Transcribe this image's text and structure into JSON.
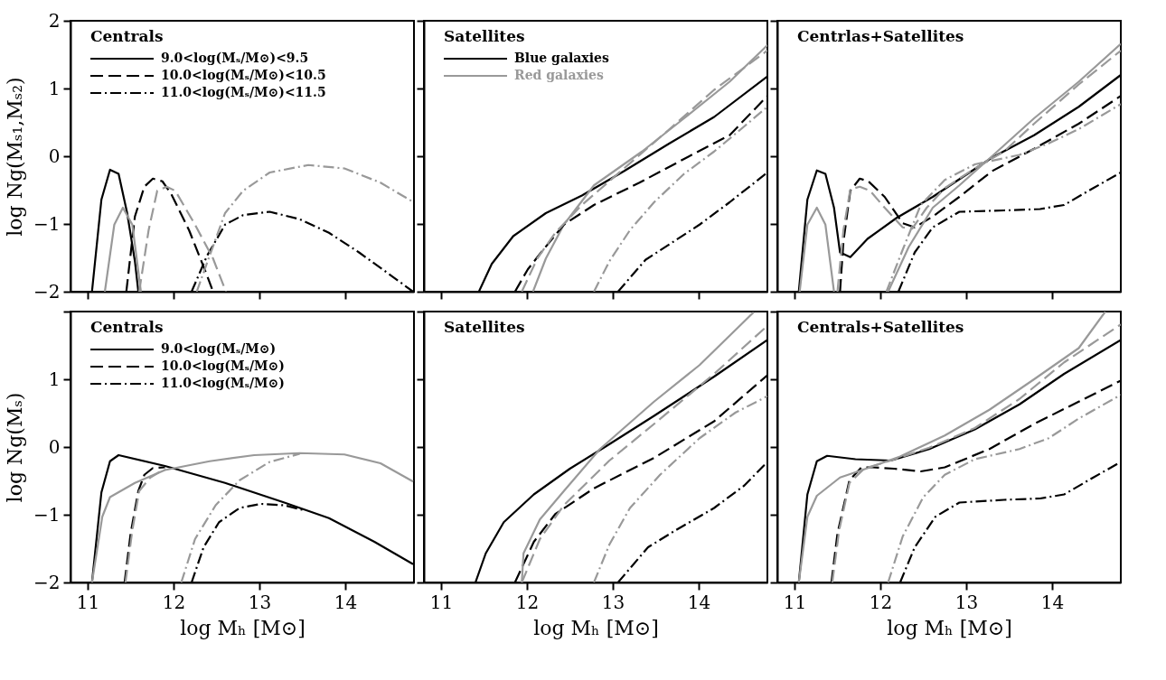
{
  "chart_data": [
    {
      "type": "line",
      "title": "Centrals",
      "ylabel": "log Ng(Mₛ₁,Mₛ₂)",
      "xlim": [
        10.8,
        14.8
      ],
      "ylim": [
        -2,
        2
      ],
      "xticks": [
        11,
        12,
        13,
        14
      ],
      "yticks": [
        -2,
        -1,
        0,
        1,
        2
      ],
      "tick_labels": "y",
      "legend": "top left",
      "grid": false,
      "series": [
        {
          "name": "9.0<log(Mₛ/M⊙)<9.5",
          "color": "#000000",
          "line_style": "solid",
          "x": [
            11.05,
            11.16,
            11.26,
            11.36,
            11.46,
            11.55,
            11.59
          ],
          "values": [
            -2,
            -0.64,
            -0.2,
            -0.26,
            -0.84,
            -1.55,
            -2
          ]
        },
        {
          "name": "10.0<log(Mₛ/M⊙)<10.5",
          "color": "#000000",
          "line_style": "dashed",
          "x": [
            11.45,
            11.55,
            11.66,
            11.76,
            11.87,
            11.97,
            12.18,
            12.39,
            12.46
          ],
          "values": [
            -2,
            -0.89,
            -0.45,
            -0.33,
            -0.37,
            -0.55,
            -1.09,
            -1.76,
            -2
          ]
        },
        {
          "name": "11.0<log(Mₛ/M⊙)<11.5",
          "color": "#000000",
          "line_style": "dashdot",
          "x": [
            12.21,
            12.39,
            12.6,
            12.81,
            13.12,
            13.47,
            13.81,
            14.16,
            14.51,
            14.79
          ],
          "values": [
            -2,
            -1.47,
            -1.01,
            -0.87,
            -0.82,
            -0.93,
            -1.13,
            -1.42,
            -1.74,
            -2
          ]
        },
        {
          "color": "#999999",
          "line_style": "solid",
          "x": [
            11.2,
            11.31,
            11.41,
            11.52,
            11.62
          ],
          "values": [
            -2,
            -1.01,
            -0.76,
            -1.01,
            -2
          ]
        },
        {
          "color": "#999999",
          "line_style": "dashed",
          "x": [
            11.6,
            11.71,
            11.81,
            11.92,
            12.02,
            12.25,
            12.46,
            12.61
          ],
          "values": [
            -2,
            -1.09,
            -0.51,
            -0.45,
            -0.51,
            -1.01,
            -1.51,
            -2
          ]
        },
        {
          "color": "#999999",
          "line_style": "dashdot",
          "x": [
            12.27,
            12.42,
            12.6,
            12.81,
            13.12,
            13.57,
            13.99,
            14.41,
            14.77
          ],
          "values": [
            -2,
            -1.47,
            -0.84,
            -0.51,
            -0.24,
            -0.13,
            -0.18,
            -0.39,
            -0.66
          ]
        }
      ]
    },
    {
      "type": "line",
      "title": "Satellites",
      "xlim": [
        10.8,
        14.8
      ],
      "ylim": [
        -2,
        2
      ],
      "xticks": [
        11,
        12,
        13,
        14
      ],
      "yticks": [
        -2,
        -1,
        0,
        1,
        2
      ],
      "tick_labels": false,
      "legend": "top left",
      "grid": false,
      "series": [
        {
          "name": "Blue galaxies",
          "color": "#000000",
          "line_style": "solid",
          "x": [
            11.44,
            11.59,
            11.84,
            12.22,
            12.64,
            13.13,
            13.66,
            14.18,
            14.8
          ],
          "values": [
            -2,
            -1.59,
            -1.18,
            -0.84,
            -0.58,
            -0.22,
            0.19,
            0.58,
            1.18
          ]
        },
        {
          "name": "Red galaxies",
          "color": "#999999",
          "line_style": "solid",
          "x": [
            12.07,
            12.22,
            12.43,
            12.78,
            13.34,
            13.83,
            14.36,
            14.8
          ],
          "values": [
            -2,
            -1.51,
            -1.01,
            -0.43,
            0.07,
            0.56,
            1.1,
            1.64
          ]
        },
        {
          "color": "#000000",
          "line_style": "dashed",
          "x": [
            11.86,
            12.01,
            12.19,
            12.43,
            12.78,
            13.31,
            13.83,
            14.36,
            14.8
          ],
          "values": [
            -2,
            -1.67,
            -1.38,
            -1.01,
            -0.72,
            -0.39,
            -0.04,
            0.31,
            0.89
          ]
        },
        {
          "color": "#999999",
          "line_style": "dashed",
          "x": [
            11.94,
            12.12,
            12.33,
            12.64,
            13.13,
            13.66,
            14.18,
            14.8
          ],
          "values": [
            -2,
            -1.51,
            -1.13,
            -0.72,
            -0.18,
            0.4,
            0.98,
            1.56
          ]
        },
        {
          "color": "#000000",
          "line_style": "dashdot",
          "x": [
            13.06,
            13.38,
            13.66,
            14.01,
            14.36,
            14.8
          ],
          "values": [
            -2,
            -1.53,
            -1.3,
            -1.01,
            -0.68,
            -0.24
          ]
        },
        {
          "color": "#999999",
          "line_style": "dashdot",
          "x": [
            12.78,
            12.96,
            13.2,
            13.48,
            13.83,
            14.18,
            14.53,
            14.8
          ],
          "values": [
            -2,
            -1.55,
            -1.09,
            -0.68,
            -0.26,
            0.07,
            0.44,
            0.73
          ]
        }
      ]
    },
    {
      "type": "line",
      "title": "Centrlas+Satellites",
      "xlim": [
        10.8,
        14.8
      ],
      "ylim": [
        -2,
        2
      ],
      "xticks": [
        11,
        12,
        13,
        14
      ],
      "yticks": [
        -2,
        -1,
        0,
        1,
        2
      ],
      "tick_labels": false,
      "grid": false,
      "series": [
        {
          "color": "#000000",
          "line_style": "solid",
          "x": [
            11.05,
            11.15,
            11.26,
            11.36,
            11.46,
            11.53,
            11.65,
            11.85,
            12.19,
            12.61,
            13.3,
            13.79,
            14.31,
            14.8
          ],
          "values": [
            -2,
            -0.64,
            -0.21,
            -0.26,
            -0.76,
            -1.42,
            -1.49,
            -1.22,
            -0.91,
            -0.6,
            -0.02,
            0.31,
            0.73,
            1.2
          ]
        },
        {
          "color": "#000000",
          "line_style": "dashed",
          "x": [
            11.53,
            11.57,
            11.65,
            11.76,
            11.86,
            12.05,
            12.26,
            12.4,
            12.61,
            12.92,
            13.3,
            13.79,
            14.31,
            14.8
          ],
          "values": [
            -2,
            -1.26,
            -0.51,
            -0.33,
            -0.37,
            -0.6,
            -0.99,
            -1.05,
            -0.89,
            -0.6,
            -0.22,
            0.11,
            0.48,
            0.89
          ]
        },
        {
          "color": "#000000",
          "line_style": "dashdot",
          "x": [
            12.21,
            12.4,
            12.61,
            12.92,
            13.44,
            13.86,
            14.14,
            14.48,
            14.8
          ],
          "values": [
            -2,
            -1.42,
            -1.05,
            -0.82,
            -0.8,
            -0.78,
            -0.72,
            -0.47,
            -0.24
          ]
        },
        {
          "color": "#999999",
          "line_style": "solid",
          "x": [
            11.06,
            11.15,
            11.26,
            11.36,
            11.46,
            11.8,
            12.09,
            12.33,
            12.61,
            12.92,
            13.3,
            13.79,
            14.31,
            14.8
          ],
          "values": [
            -2,
            -1.01,
            -0.76,
            -1.01,
            -2,
            null,
            -2,
            -1.34,
            -0.76,
            -0.43,
            0,
            0.56,
            1.1,
            1.66
          ]
        },
        {
          "color": "#999999",
          "line_style": "dashed",
          "x": [
            11.5,
            11.57,
            11.65,
            11.76,
            11.88,
            12.05,
            12.26,
            12.37,
            12.54,
            12.75,
            13.1,
            13.44,
            13.79,
            14.31,
            14.8
          ],
          "values": [
            -2,
            -1.09,
            -0.49,
            -0.45,
            -0.51,
            -0.76,
            -1.05,
            -1.07,
            -0.76,
            -0.47,
            -0.18,
            0.07,
            0.48,
            1.06,
            1.56
          ]
        },
        {
          "color": "#999999",
          "line_style": "dashdot",
          "x": [
            12.07,
            12.26,
            12.47,
            12.75,
            13.1,
            13.62,
            13.96,
            14.31,
            14.8
          ],
          "values": [
            -2,
            -1.38,
            -0.72,
            -0.35,
            -0.12,
            0.02,
            0.19,
            0.4,
            0.77
          ]
        }
      ]
    },
    {
      "type": "line",
      "title": "Centrals",
      "xlabel": "log Mₕ [M⊙]",
      "ylabel": "log Ng(Mₛ)",
      "xlim": [
        10.8,
        14.8
      ],
      "ylim": [
        -2,
        2
      ],
      "xticks": [
        11,
        12,
        13,
        14
      ],
      "yticks": [
        -2,
        -1,
        0,
        1,
        {
          "value": 2,
          "label": null
        }
      ],
      "legend": "top left",
      "grid": false,
      "series": [
        {
          "name": "9.0<log(Mₛ/M⊙)",
          "color": "#000000",
          "line_style": "solid",
          "x": [
            11.05,
            11.16,
            11.26,
            11.36,
            11.9,
            12.6,
            13.29,
            13.81,
            14.34,
            14.79
          ],
          "values": [
            -2,
            -0.67,
            -0.21,
            -0.12,
            -0.28,
            -0.53,
            -0.82,
            -1.05,
            -1.4,
            -1.73
          ]
        },
        {
          "name": "10.0<log(Mₛ/M⊙)",
          "color": "#000000",
          "line_style": "dashed",
          "x": [
            11.43,
            11.5,
            11.59,
            11.66,
            11.76,
            11.9
          ],
          "values": [
            -2,
            -1.28,
            -0.65,
            -0.41,
            -0.31,
            -0.3
          ]
        },
        {
          "name": "11.0<log(Mₛ/M⊙)",
          "color": "#000000",
          "line_style": "dashdot",
          "x": [
            12.21,
            12.35,
            12.53,
            12.77,
            13.02,
            13.29,
            13.54
          ],
          "values": [
            -2,
            -1.48,
            -1.11,
            -0.9,
            -0.84,
            -0.86,
            -0.94
          ]
        },
        {
          "color": "#999999",
          "line_style": "solid",
          "x": [
            11.05,
            11.17,
            11.26,
            11.55,
            11.9,
            12.42,
            12.94,
            13.47,
            13.99,
            14.41,
            14.79
          ],
          "values": [
            -2,
            -1.03,
            -0.74,
            -0.53,
            -0.34,
            -0.21,
            -0.12,
            -0.09,
            -0.11,
            -0.24,
            -0.51
          ]
        },
        {
          "color": "#999999",
          "line_style": "dashed",
          "x": [
            11.44,
            11.52,
            11.6,
            11.73,
            11.9
          ],
          "values": [
            -2,
            -1.23,
            -0.65,
            -0.45,
            -0.32
          ]
        },
        {
          "color": "#999999",
          "line_style": "dashdot",
          "x": [
            12.09,
            12.25,
            12.49,
            12.77,
            13.12,
            13.47
          ],
          "values": [
            -2,
            -1.36,
            -0.86,
            -0.49,
            -0.22,
            -0.1
          ]
        }
      ]
    },
    {
      "type": "line",
      "title": "Satellites",
      "xlabel": "log Mₕ [M⊙]",
      "xlim": [
        10.8,
        14.8
      ],
      "ylim": [
        -2,
        2
      ],
      "xticks": [
        11,
        12,
        13,
        14
      ],
      "yticks": [
        -2,
        -1,
        0,
        1,
        2
      ],
      "tick_labels": "x",
      "grid": false,
      "series": [
        {
          "color": "#000000",
          "line_style": "solid",
          "x": [
            11.4,
            11.52,
            11.73,
            12.08,
            12.5,
            12.92,
            13.48,
            14.18,
            14.8
          ],
          "values": [
            -2,
            -1.57,
            -1.11,
            -0.7,
            -0.32,
            0.01,
            0.46,
            1.04,
            1.58
          ]
        },
        {
          "color": "#000000",
          "line_style": "dashed",
          "x": [
            11.86,
            12.08,
            12.33,
            12.78,
            13.48,
            14.18,
            14.8
          ],
          "values": [
            -2,
            -1.4,
            -0.99,
            -0.61,
            -0.16,
            0.38,
            1.06
          ]
        },
        {
          "color": "#000000",
          "line_style": "dashdot",
          "x": [
            13.06,
            13.41,
            13.73,
            14.18,
            14.53,
            14.8
          ],
          "values": [
            -2,
            -1.48,
            -1.23,
            -0.9,
            -0.57,
            -0.22
          ]
        },
        {
          "color": "#999999",
          "line_style": "solid",
          "x": [
            11.94,
            11.96,
            12.15,
            12.43,
            12.85,
            13.48,
            14.01,
            14.64
          ],
          "values": [
            -2,
            -1.57,
            -1.07,
            -0.65,
            -0.03,
            0.67,
            1.21,
            1.99
          ]
        },
        {
          "color": "#999999",
          "line_style": "dashed",
          "x": [
            11.94,
            12.15,
            12.43,
            12.96,
            13.48,
            14.18,
            14.8
          ],
          "values": [
            -2,
            -1.36,
            -0.86,
            -0.2,
            0.34,
            1.08,
            1.79
          ]
        },
        {
          "color": "#999999",
          "line_style": "dashdot",
          "x": [
            12.78,
            12.96,
            13.2,
            13.55,
            14.01,
            14.43,
            14.8
          ],
          "values": [
            -2,
            -1.44,
            -0.9,
            -0.41,
            0.13,
            0.51,
            0.75
          ]
        }
      ]
    },
    {
      "type": "line",
      "title": "Centrals+Satellites",
      "xlabel": "log Mₕ [M⊙]",
      "xlim": [
        10.8,
        14.8
      ],
      "ylim": [
        -2,
        2
      ],
      "xticks": [
        11,
        12,
        13,
        14
      ],
      "yticks": [
        -2,
        -1,
        0,
        1,
        2
      ],
      "tick_labels": "x",
      "grid": false,
      "series": [
        {
          "color": "#000000",
          "line_style": "solid",
          "x": [
            11.05,
            11.15,
            11.26,
            11.38,
            11.71,
            12.12,
            12.57,
            13.1,
            13.62,
            14.14,
            14.8
          ],
          "values": [
            -2,
            -0.7,
            -0.21,
            -0.13,
            -0.18,
            -0.2,
            -0.03,
            0.26,
            0.63,
            1.08,
            1.58
          ]
        },
        {
          "color": "#000000",
          "line_style": "dashed",
          "x": [
            11.43,
            11.5,
            11.64,
            11.78,
            11.91,
            12.16,
            12.47,
            12.75,
            13.27,
            13.79,
            14.31,
            14.8
          ],
          "values": [
            -2,
            -1.28,
            -0.49,
            -0.3,
            -0.3,
            -0.32,
            -0.36,
            -0.3,
            -0.03,
            0.34,
            0.67,
            0.98
          ]
        },
        {
          "color": "#000000",
          "line_style": "dashdot",
          "x": [
            12.23,
            12.4,
            12.64,
            12.92,
            13.44,
            13.86,
            14.14,
            14.48,
            14.8
          ],
          "values": [
            -2,
            -1.48,
            -1.03,
            -0.82,
            -0.78,
            -0.76,
            -0.7,
            -0.45,
            -0.22
          ]
        },
        {
          "color": "#999999",
          "line_style": "solid",
          "x": [
            11.05,
            11.15,
            11.26,
            11.53,
            11.88,
            12.23,
            12.75,
            13.27,
            13.79,
            14.31,
            14.62
          ],
          "values": [
            -2,
            -1.03,
            -0.72,
            -0.45,
            -0.3,
            -0.14,
            0.17,
            0.55,
            1,
            1.46,
            2
          ]
        },
        {
          "color": "#999999",
          "line_style": "dashed",
          "x": [
            11.44,
            11.52,
            11.64,
            11.81,
            12.12,
            12.57,
            13.1,
            13.62,
            14.14,
            14.8
          ],
          "values": [
            -2,
            -1.23,
            -0.53,
            -0.32,
            -0.2,
            -0.01,
            0.28,
            0.71,
            1.25,
            1.81
          ]
        },
        {
          "color": "#999999",
          "line_style": "dashdot",
          "x": [
            12.09,
            12.26,
            12.5,
            12.75,
            13.1,
            13.62,
            13.96,
            14.31,
            14.8
          ],
          "values": [
            -2,
            -1.32,
            -0.74,
            -0.41,
            -0.18,
            -0.03,
            0.13,
            0.42,
            0.77
          ]
        }
      ]
    }
  ]
}
